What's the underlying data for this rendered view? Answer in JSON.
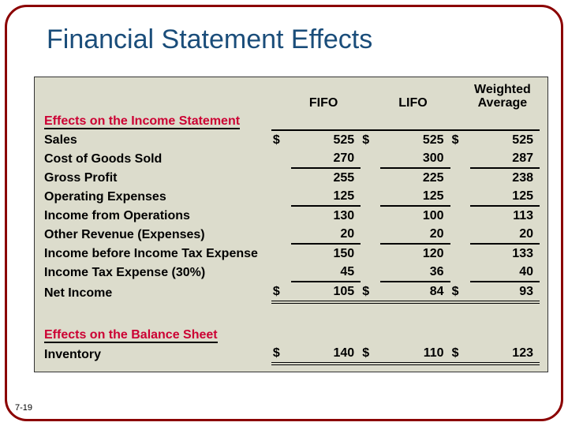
{
  "slide": {
    "title": "Financial Statement Effects",
    "page_number": "7-19"
  },
  "table": {
    "background_color": "#dcdccc",
    "header_red_color": "#cc0033",
    "text_color": "#000000",
    "font_family": "Arial",
    "font_size_pt": 12,
    "font_weight": "bold",
    "columns": [
      "FIFO",
      "LIFO",
      "Weighted Average"
    ],
    "currency_symbol": "$",
    "sections": [
      {
        "header": "Effects on the Income Statement",
        "rows": [
          {
            "label": "Sales",
            "values": [
              525,
              525,
              525
            ],
            "currency": true
          },
          {
            "label": "Cost of Goods Sold",
            "values": [
              270,
              300,
              287
            ],
            "underline": true
          },
          {
            "label": "Gross Profit",
            "values": [
              255,
              225,
              238
            ]
          },
          {
            "label": "Operating Expenses",
            "values": [
              125,
              125,
              125
            ],
            "underline": true
          },
          {
            "label": "Income from Operations",
            "values": [
              130,
              100,
              113
            ]
          },
          {
            "label": "Other Revenue (Expenses)",
            "values": [
              20,
              20,
              20
            ],
            "underline": true
          },
          {
            "label": "Income before Income Tax Expense",
            "values": [
              150,
              120,
              133
            ]
          },
          {
            "label": "Income Tax Expense (30%)",
            "values": [
              45,
              36,
              40
            ],
            "underline": true
          },
          {
            "label": "Net Income",
            "values": [
              105,
              84,
              93
            ],
            "currency": true,
            "double": true
          }
        ]
      },
      {
        "header": "Effects on the Balance Sheet",
        "rows": [
          {
            "label": "Inventory",
            "values": [
              140,
              110,
              123
            ],
            "currency": true,
            "double": true
          }
        ]
      }
    ]
  }
}
